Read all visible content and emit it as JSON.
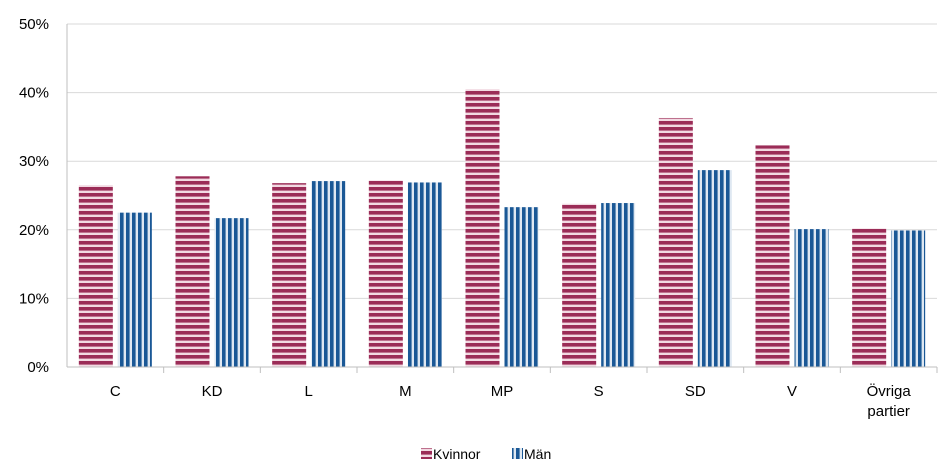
{
  "chart_data": {
    "type": "bar",
    "categories": [
      "C",
      "KD",
      "L",
      "M",
      "MP",
      "S",
      "SD",
      "V",
      "Övriga partier"
    ],
    "category_lines": [
      [
        "C"
      ],
      [
        "KD"
      ],
      [
        "L"
      ],
      [
        "M"
      ],
      [
        "MP"
      ],
      [
        "S"
      ],
      [
        "SD"
      ],
      [
        "V"
      ],
      [
        "Övriga",
        "partier"
      ]
    ],
    "series": [
      {
        "name": "Kvinnor",
        "color": "#9b2c57",
        "stripe_color": "#f2d9e2",
        "values": [
          26.5,
          27.8,
          26.8,
          27.2,
          40.5,
          23.8,
          36.3,
          32.3,
          20.2
        ]
      },
      {
        "name": "Män",
        "color": "#1a5896",
        "stripe_color": "#dfe8f2",
        "values": [
          22.5,
          21.7,
          27.1,
          26.9,
          23.3,
          23.9,
          28.7,
          20.1,
          19.9
        ]
      }
    ],
    "yticks": [
      "0%",
      "10%",
      "20%",
      "30%",
      "40%",
      "50%"
    ],
    "ylim": [
      0,
      50
    ],
    "grid": true,
    "legend_position": "bottom",
    "title": "",
    "xlabel": "",
    "ylabel": ""
  }
}
